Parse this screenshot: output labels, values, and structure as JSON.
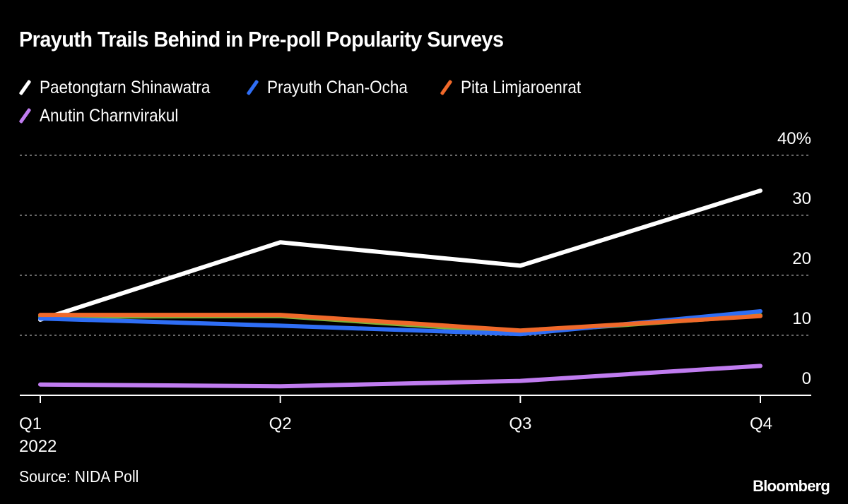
{
  "chart_data": {
    "type": "line",
    "title": "Prayuth Trails Behind in Pre-poll Popularity Surveys",
    "x": [
      "Q1",
      "Q2",
      "Q3",
      "Q4"
    ],
    "x_tick_labels": [
      {
        "label": "Q1",
        "sublabel": "2022"
      },
      {
        "label": "Q2",
        "sublabel": ""
      },
      {
        "label": "Q3",
        "sublabel": ""
      },
      {
        "label": "Q4",
        "sublabel": ""
      }
    ],
    "xlabel": "",
    "ylabel": "",
    "ylim": [
      0,
      40
    ],
    "y_ticks": [
      {
        "value": 0,
        "label": "0"
      },
      {
        "value": 10,
        "label": "10"
      },
      {
        "value": 20,
        "label": "20"
      },
      {
        "value": 30,
        "label": "30"
      },
      {
        "value": 40,
        "label": "40%"
      }
    ],
    "grid": true,
    "y_axis_side": "right",
    "legend_position": "top-left",
    "series": [
      {
        "name": "Paetongtarn Shinawatra",
        "color": "#ffffff",
        "values": [
          12.6,
          25.5,
          21.6,
          34.1
        ],
        "in_legend": true
      },
      {
        "name": "",
        "color": "#7fb23a",
        "values": [
          13.1,
          13.2,
          10.5,
          13.3
        ],
        "in_legend": false
      },
      {
        "name": "Prayuth Chan-Ocha",
        "color": "#2f6ef5",
        "values": [
          12.8,
          11.6,
          10.2,
          14.0
        ],
        "in_legend": true
      },
      {
        "name": "Pita Limjaroenrat",
        "color": "#f0692a",
        "values": [
          13.4,
          13.4,
          10.8,
          13.2
        ],
        "in_legend": true
      },
      {
        "name": "Anutin Charnvirakul",
        "color": "#c07cf0",
        "values": [
          1.8,
          1.5,
          2.4,
          4.9
        ],
        "in_legend": true
      }
    ]
  },
  "legend": [
    {
      "label": "Paetongtarn Shinawatra",
      "color": "#ffffff"
    },
    {
      "label": "Prayuth Chan-Ocha",
      "color": "#2f6ef5"
    },
    {
      "label": "Pita Limjaroenrat",
      "color": "#f0692a"
    },
    {
      "label": "Anutin Charnvirakul",
      "color": "#c07cf0"
    }
  ],
  "footer": {
    "source": "Source: NIDA Poll",
    "brand": "Bloomberg"
  }
}
